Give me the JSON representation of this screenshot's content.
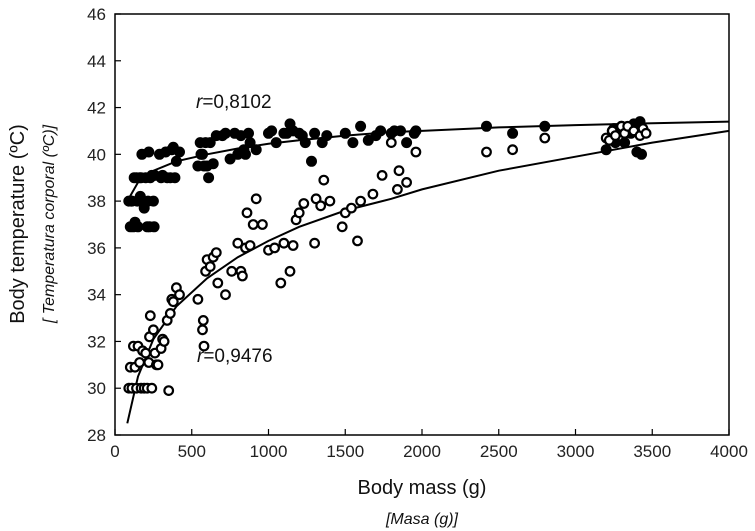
{
  "chart_data": {
    "type": "scatter",
    "xlabel": "Body mass (g)",
    "xlabel_translation": "[Masa (g)]",
    "ylabel": "Body temperature (ºC)",
    "ylabel_translation": "[ Temperatura corporal (ºC)]",
    "xlim": [
      0,
      4000
    ],
    "ylim": [
      28,
      46
    ],
    "x_ticks": [
      0,
      500,
      1000,
      1500,
      2000,
      2500,
      3000,
      3500,
      4000
    ],
    "y_ticks": [
      28,
      30,
      32,
      34,
      36,
      38,
      40,
      42,
      44,
      46
    ],
    "grid": false,
    "legend": "none",
    "annotations": [
      {
        "r_symbol": "r",
        "value_text": "=0,8102"
      },
      {
        "r_symbol": "r",
        "value_text": "=0,9476"
      }
    ],
    "series": [
      {
        "marker": "filled-circle",
        "color": "#000000",
        "points": [
          [
            90,
            38
          ],
          [
            100,
            36.9
          ],
          [
            105,
            38
          ],
          [
            110,
            38
          ],
          [
            120,
            36.9
          ],
          [
            125,
            39
          ],
          [
            130,
            37.1
          ],
          [
            140,
            39
          ],
          [
            145,
            38
          ],
          [
            150,
            36.9
          ],
          [
            160,
            39
          ],
          [
            165,
            38.2
          ],
          [
            170,
            39
          ],
          [
            175,
            40
          ],
          [
            180,
            38
          ],
          [
            190,
            37.7
          ],
          [
            200,
            39
          ],
          [
            210,
            36.9
          ],
          [
            215,
            38
          ],
          [
            220,
            40.1
          ],
          [
            225,
            36.9
          ],
          [
            230,
            39
          ],
          [
            240,
            39.1
          ],
          [
            250,
            38
          ],
          [
            255,
            36.9
          ],
          [
            260,
            39.1
          ],
          [
            290,
            40
          ],
          [
            300,
            39
          ],
          [
            310,
            39.1
          ],
          [
            330,
            40.1
          ],
          [
            340,
            39
          ],
          [
            360,
            39
          ],
          [
            370,
            40.2
          ],
          [
            380,
            40.3
          ],
          [
            390,
            39
          ],
          [
            400,
            39.7
          ],
          [
            420,
            40.1
          ],
          [
            540,
            39.5
          ],
          [
            555,
            40.5
          ],
          [
            560,
            40
          ],
          [
            570,
            40
          ],
          [
            580,
            39.5
          ],
          [
            590,
            40.5
          ],
          [
            600,
            39.5
          ],
          [
            610,
            39
          ],
          [
            620,
            40.5
          ],
          [
            640,
            39.6
          ],
          [
            660,
            40.8
          ],
          [
            700,
            40.8
          ],
          [
            720,
            40.9
          ],
          [
            750,
            39.8
          ],
          [
            780,
            40.9
          ],
          [
            800,
            40
          ],
          [
            820,
            40.8
          ],
          [
            840,
            40.2
          ],
          [
            850,
            40
          ],
          [
            870,
            40.9
          ],
          [
            880,
            40.5
          ],
          [
            920,
            40.2
          ],
          [
            1000,
            40.9
          ],
          [
            1020,
            41
          ],
          [
            1050,
            40.5
          ],
          [
            1100,
            40.9
          ],
          [
            1120,
            40.9
          ],
          [
            1140,
            41.3
          ],
          [
            1160,
            41
          ],
          [
            1200,
            40.9
          ],
          [
            1220,
            40.8
          ],
          [
            1240,
            40.5
          ],
          [
            1280,
            39.7
          ],
          [
            1300,
            40.9
          ],
          [
            1350,
            40.5
          ],
          [
            1380,
            40.8
          ],
          [
            1500,
            40.9
          ],
          [
            1550,
            40.5
          ],
          [
            1600,
            41.2
          ],
          [
            1650,
            40.6
          ],
          [
            1700,
            40.8
          ],
          [
            1730,
            41
          ],
          [
            1800,
            40.9
          ],
          [
            1820,
            41
          ],
          [
            1860,
            41
          ],
          [
            1900,
            40.5
          ],
          [
            1950,
            40.9
          ],
          [
            1960,
            41
          ],
          [
            2420,
            41.2
          ],
          [
            2590,
            40.9
          ],
          [
            2800,
            41.2
          ],
          [
            3200,
            40.2
          ],
          [
            3220,
            40.6
          ],
          [
            3240,
            41
          ],
          [
            3250,
            41.1
          ],
          [
            3260,
            40.5
          ],
          [
            3280,
            41.1
          ],
          [
            3300,
            41.2
          ],
          [
            3320,
            40.5
          ],
          [
            3340,
            41
          ],
          [
            3360,
            40.9
          ],
          [
            3380,
            41.3
          ],
          [
            3400,
            40.1
          ],
          [
            3410,
            41.1
          ],
          [
            3420,
            41.4
          ],
          [
            3430,
            40
          ],
          [
            3440,
            41
          ]
        ]
      },
      {
        "marker": "open-circle",
        "color": "#000000",
        "points": [
          [
            90,
            30
          ],
          [
            100,
            30.9
          ],
          [
            110,
            30
          ],
          [
            120,
            31.8
          ],
          [
            130,
            30.9
          ],
          [
            140,
            30
          ],
          [
            150,
            31.8
          ],
          [
            160,
            31.1
          ],
          [
            170,
            30
          ],
          [
            180,
            31.6
          ],
          [
            190,
            30
          ],
          [
            200,
            31.5
          ],
          [
            210,
            30
          ],
          [
            220,
            31.1
          ],
          [
            225,
            32.2
          ],
          [
            230,
            33.1
          ],
          [
            240,
            30
          ],
          [
            250,
            32.5
          ],
          [
            260,
            31.5
          ],
          [
            270,
            31
          ],
          [
            280,
            31
          ],
          [
            300,
            31.7
          ],
          [
            310,
            32.1
          ],
          [
            320,
            32
          ],
          [
            340,
            32.9
          ],
          [
            350,
            29.9
          ],
          [
            360,
            33.2
          ],
          [
            370,
            33.8
          ],
          [
            380,
            33.7
          ],
          [
            400,
            34.3
          ],
          [
            420,
            34
          ],
          [
            540,
            33.8
          ],
          [
            570,
            32.5
          ],
          [
            575,
            32.9
          ],
          [
            580,
            31.8
          ],
          [
            590,
            35
          ],
          [
            600,
            35.5
          ],
          [
            620,
            35.2
          ],
          [
            640,
            35.6
          ],
          [
            660,
            35.8
          ],
          [
            670,
            34.5
          ],
          [
            720,
            34
          ],
          [
            760,
            35
          ],
          [
            800,
            36.2
          ],
          [
            820,
            35
          ],
          [
            830,
            34.8
          ],
          [
            850,
            36
          ],
          [
            860,
            37.5
          ],
          [
            880,
            36.1
          ],
          [
            900,
            37
          ],
          [
            920,
            38.1
          ],
          [
            960,
            37
          ],
          [
            1000,
            35.9
          ],
          [
            1040,
            36
          ],
          [
            1080,
            34.5
          ],
          [
            1100,
            36.2
          ],
          [
            1140,
            35
          ],
          [
            1160,
            36.1
          ],
          [
            1180,
            37.2
          ],
          [
            1200,
            37.5
          ],
          [
            1230,
            37.9
          ],
          [
            1300,
            36.2
          ],
          [
            1310,
            38.1
          ],
          [
            1340,
            37.8
          ],
          [
            1360,
            38.9
          ],
          [
            1400,
            38
          ],
          [
            1480,
            36.9
          ],
          [
            1500,
            37.5
          ],
          [
            1540,
            37.7
          ],
          [
            1580,
            36.3
          ],
          [
            1600,
            38
          ],
          [
            1680,
            38.3
          ],
          [
            1740,
            39.1
          ],
          [
            1800,
            40.5
          ],
          [
            1840,
            38.5
          ],
          [
            1850,
            39.3
          ],
          [
            1900,
            38.8
          ],
          [
            1960,
            40.1
          ],
          [
            2420,
            40.1
          ],
          [
            2590,
            40.2
          ],
          [
            2800,
            40.7
          ],
          [
            3200,
            40.7
          ],
          [
            3220,
            40.6
          ],
          [
            3240,
            41
          ],
          [
            3260,
            40.8
          ],
          [
            3300,
            41.2
          ],
          [
            3320,
            40.9
          ],
          [
            3340,
            41.2
          ],
          [
            3380,
            41
          ],
          [
            3420,
            40.8
          ],
          [
            3440,
            41.1
          ],
          [
            3460,
            40.9
          ]
        ]
      }
    ],
    "fit_curves": [
      {
        "x": [
          80,
          150,
          250,
          400,
          600,
          800,
          1000,
          1200,
          1500,
          1800,
          2000,
          2500,
          3000,
          3500,
          4000
        ],
        "y": [
          38.0,
          38.8,
          39.3,
          39.7,
          40.0,
          40.25,
          40.45,
          40.6,
          40.8,
          40.95,
          41.0,
          41.15,
          41.25,
          41.33,
          41.4
        ]
      },
      {
        "x": [
          80,
          150,
          250,
          400,
          600,
          800,
          1000,
          1200,
          1500,
          1800,
          2000,
          2500,
          3000,
          3500,
          4000
        ],
        "y": [
          28.5,
          30.5,
          32.1,
          33.5,
          34.7,
          35.6,
          36.3,
          36.9,
          37.6,
          38.1,
          38.5,
          39.3,
          39.9,
          40.5,
          41.0
        ]
      }
    ]
  }
}
